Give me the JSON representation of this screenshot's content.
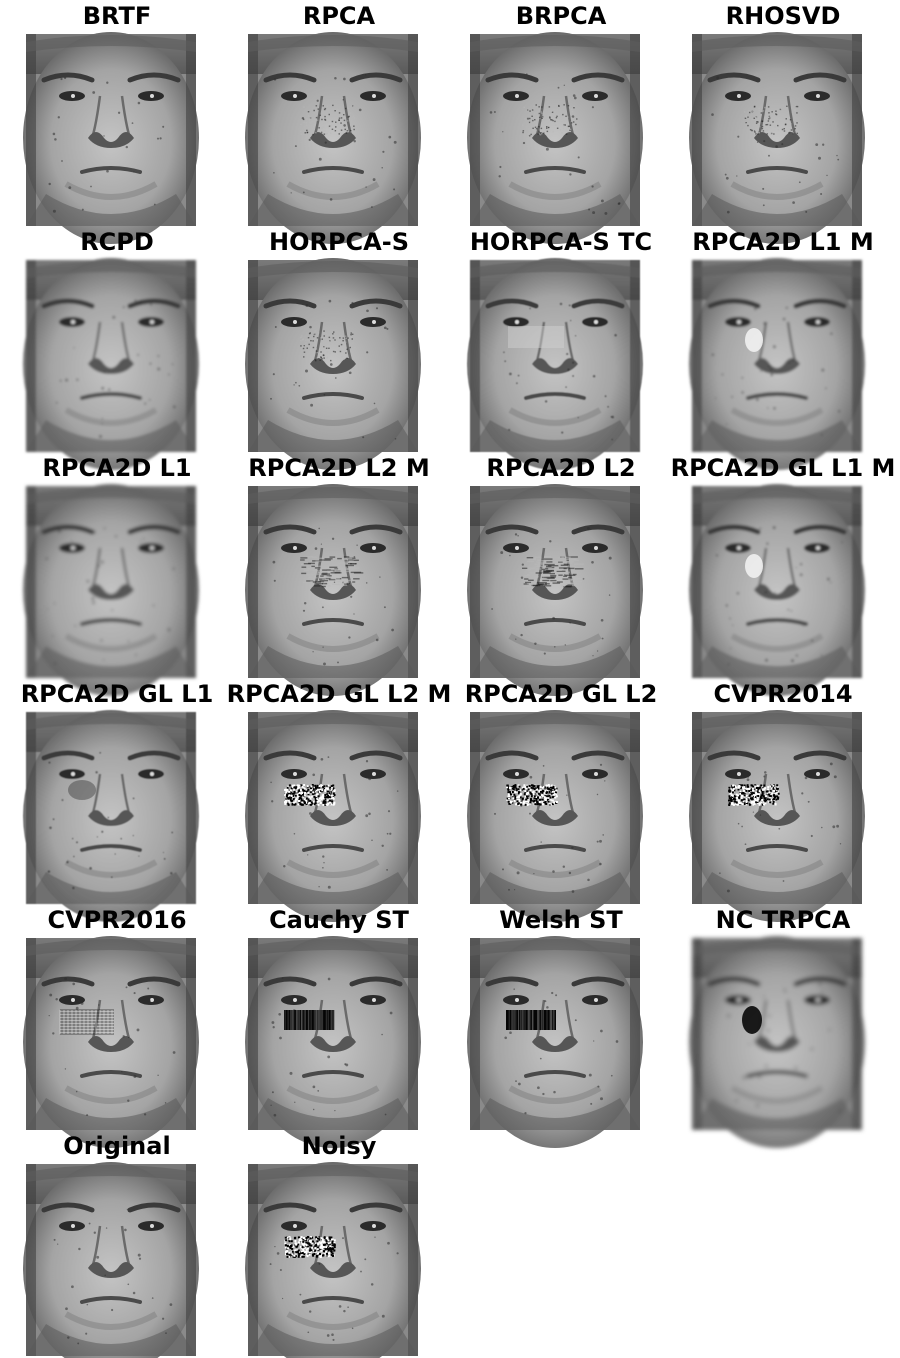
{
  "panels": [
    {
      "title": "BRTF",
      "face": "face-image",
      "artifact": "none",
      "blur": 0
    },
    {
      "title": "RPCA",
      "face": "face-image",
      "artifact": "faint-noise",
      "blur": 0
    },
    {
      "title": "BRPCA",
      "face": "face-image",
      "artifact": "faint-noise",
      "blur": 0
    },
    {
      "title": "RHOSVD",
      "face": "face-image",
      "artifact": "faint-noise",
      "blur": 0
    },
    {
      "title": "RCPD",
      "face": "face-image",
      "artifact": "none",
      "blur": 1.4
    },
    {
      "title": "HORPCA-S",
      "face": "face-image",
      "artifact": "faint-noise",
      "blur": 0
    },
    {
      "title": "HORPCA-S TC",
      "face": "face-image",
      "artifact": "light-patch",
      "blur": 0.4
    },
    {
      "title": "RPCA2D L1 M",
      "face": "face-image",
      "artifact": "bright-spot",
      "blur": 1.2
    },
    {
      "title": "RPCA2D L1",
      "face": "face-image",
      "artifact": "none",
      "blur": 1.6
    },
    {
      "title": "RPCA2D L2 M",
      "face": "face-image",
      "artifact": "streaks",
      "blur": 0
    },
    {
      "title": "RPCA2D L2",
      "face": "face-image",
      "artifact": "streaks",
      "blur": 0
    },
    {
      "title": "RPCA2D GL L1 M",
      "face": "face-image",
      "artifact": "bright-spot",
      "blur": 1.2
    },
    {
      "title": "RPCA2D GL L1",
      "face": "face-image",
      "artifact": "smudge",
      "blur": 0.6
    },
    {
      "title": "RPCA2D GL L2 M",
      "face": "face-image",
      "artifact": "noise-block",
      "blur": 0
    },
    {
      "title": "RPCA2D GL L2",
      "face": "face-image",
      "artifact": "noise-block",
      "blur": 0
    },
    {
      "title": "CVPR2014",
      "face": "face-image",
      "artifact": "salt-pepper",
      "blur": 0
    },
    {
      "title": "CVPR2016",
      "face": "face-image",
      "artifact": "grid-block",
      "blur": 0
    },
    {
      "title": "Cauchy ST",
      "face": "face-image",
      "artifact": "black-block",
      "blur": 0
    },
    {
      "title": "Welsh ST",
      "face": "face-image",
      "artifact": "black-block",
      "blur": 0
    },
    {
      "title": "NC TRPCA",
      "face": "face-image",
      "artifact": "dark-spot",
      "blur": 2.2
    },
    {
      "title": "Original",
      "face": "face-image",
      "artifact": "none",
      "blur": 0
    },
    {
      "title": "Noisy",
      "face": "face-image",
      "artifact": "salt-pepper",
      "blur": 0
    }
  ]
}
